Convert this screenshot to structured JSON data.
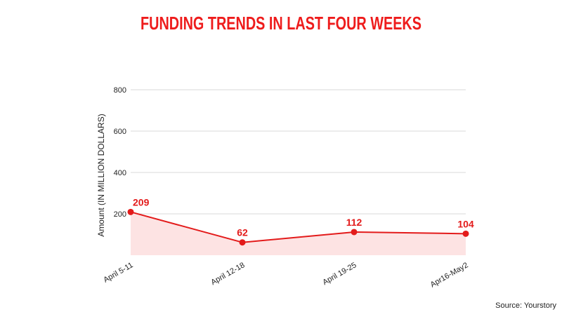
{
  "chart_data": {
    "type": "area",
    "title": "FUNDING TRENDS IN LAST FOUR WEEKS",
    "subtitle": "",
    "xlabel": "",
    "ylabel": "Amount (IN MILLION DOLLARS)",
    "categories": [
      "April 5-11",
      "April 12-18",
      "April 19-25",
      "Apr16-May2"
    ],
    "series": [
      {
        "values": [
          209,
          62,
          112,
          104
        ]
      }
    ],
    "data_labels": [
      "209",
      "62",
      "112",
      "104"
    ],
    "y_ticks": [
      200,
      400,
      600,
      800
    ],
    "y_tick_labels": [
      "200",
      "400",
      "600",
      "800"
    ],
    "ylim": [
      0,
      800
    ],
    "grid": true,
    "legend": "none",
    "source": "Source: Yourstory",
    "colors": {
      "title": "#ee1c1c",
      "line": "#e31b1b",
      "fill": "#fde3e3",
      "label": "#e31b1b",
      "grid": "#d8d8d8",
      "text": "#222222"
    }
  }
}
